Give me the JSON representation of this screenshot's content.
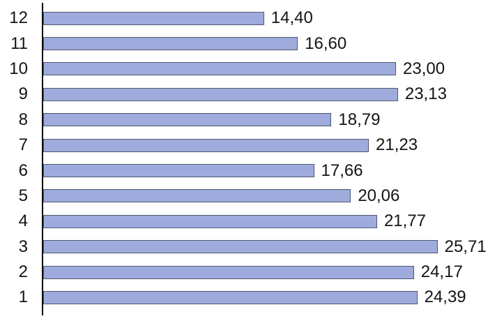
{
  "chart_data": {
    "type": "bar",
    "orientation": "horizontal",
    "title": "",
    "xlabel": "",
    "ylabel": "",
    "categories": [
      "12",
      "11",
      "10",
      "9",
      "8",
      "7",
      "6",
      "5",
      "4",
      "3",
      "2",
      "1"
    ],
    "values": [
      14.4,
      16.6,
      23.0,
      23.13,
      18.79,
      21.23,
      17.66,
      20.06,
      21.77,
      25.71,
      24.17,
      24.39
    ],
    "value_labels": [
      "14,40",
      "16,60",
      "23,00",
      "23,13",
      "18,79",
      "21,23",
      "17,66",
      "20,06",
      "21,77",
      "25,71",
      "24,17",
      "24,39"
    ],
    "decimal_separator": ",",
    "xlim": [
      0,
      29
    ],
    "grid": false,
    "legend": false,
    "bar_color": "#9FABDC",
    "bar_border_color": "#4E5870",
    "axis_color": "#000000",
    "label_color": "#141414",
    "background_color": "#ffffff"
  }
}
